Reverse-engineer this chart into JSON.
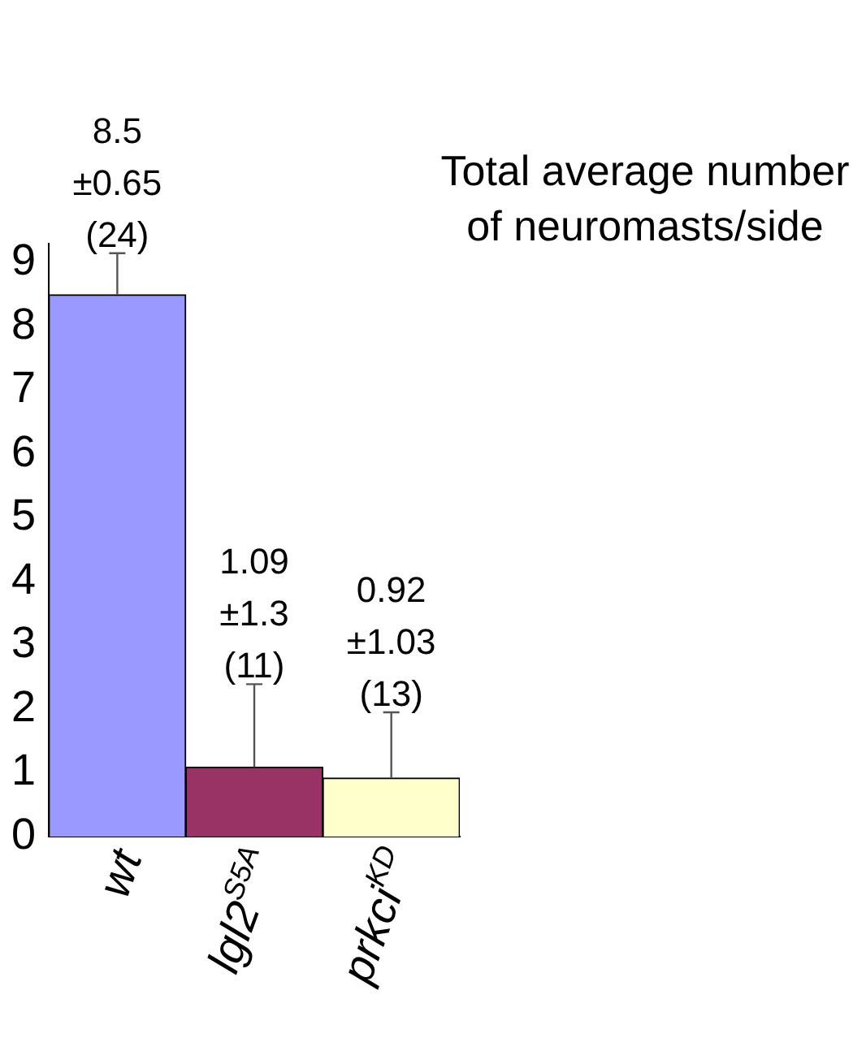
{
  "chart_data": {
    "type": "bar",
    "title": "Total average number\nof neuromasts/side",
    "categories": [
      "wt",
      "lgl2$^{S5A}$",
      "prkci$^{KD}$"
    ],
    "values": [
      8.5,
      1.09,
      0.92
    ],
    "colors": [
      "#9999ff",
      "#993366",
      "#ffffcc"
    ],
    "errors": [
      [
        8.5,
        9.15
      ],
      [
        1.09,
        2.39
      ],
      [
        0.92,
        1.95
      ]
    ],
    "value_labels": [
      "8.5\n±0.65\n(24)",
      "1.09\n±1.3\n(11)",
      "0.92\n±1.03\n(13)"
    ],
    "ylim": [
      0,
      9.3
    ],
    "yticks": [
      0,
      1,
      2,
      3,
      4,
      5,
      6,
      7,
      8,
      9
    ],
    "grid": false,
    "legend": false
  }
}
